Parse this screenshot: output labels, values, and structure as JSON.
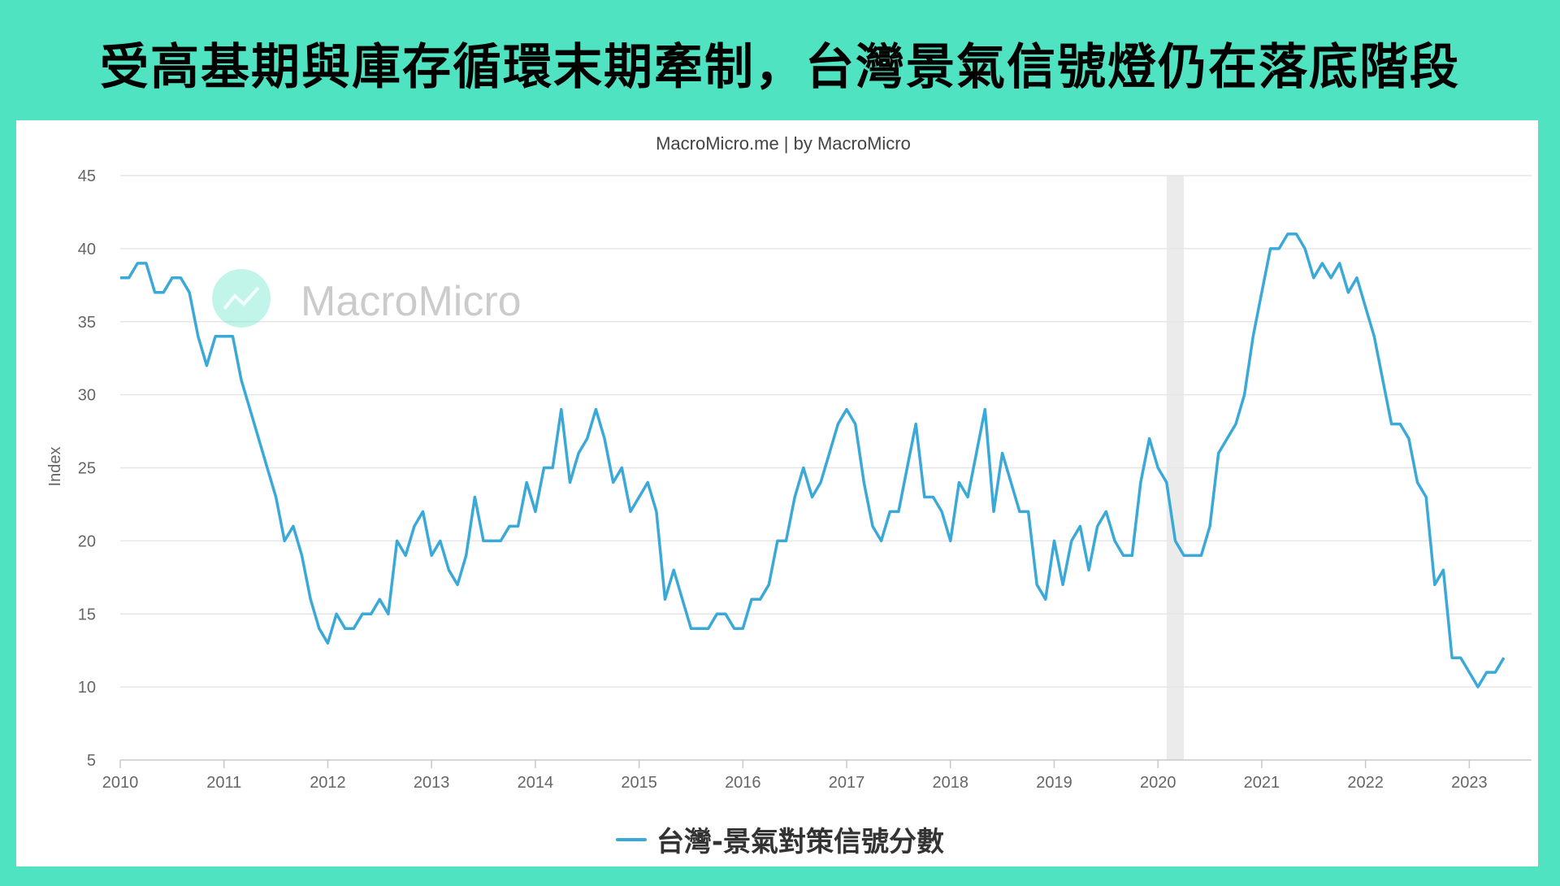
{
  "title": "受高基期與庫存循環末期牽制，台灣景氣信號燈仍在落底階段",
  "chart_source": "MacroMicro.me | by MacroMicro",
  "watermark": "MacroMicro",
  "colors": {
    "line": "#3aa9d8",
    "background": "#50e3c2",
    "shade": "#ebebeb",
    "grid": "#e6e6e6"
  },
  "chart_data": {
    "type": "line",
    "ylabel": "Index",
    "ylim": [
      5,
      45
    ],
    "yticks": [
      5,
      10,
      15,
      20,
      25,
      30,
      35,
      40,
      45
    ],
    "xlim": [
      2010,
      2023.6
    ],
    "xticks": [
      "2010",
      "2011",
      "2012",
      "2013",
      "2014",
      "2015",
      "2016",
      "2017",
      "2018",
      "2019",
      "2020",
      "2021",
      "2022",
      "2023"
    ],
    "grid": true,
    "legend_position": "bottom",
    "shaded_period": [
      "2020-02",
      "2020-04"
    ],
    "series": [
      {
        "name": "台灣-景氣對策信號分數",
        "start": "2010-01",
        "values": [
          38,
          38,
          39,
          39,
          37,
          37,
          38,
          38,
          37,
          34,
          32,
          34,
          34,
          34,
          31,
          29,
          27,
          25,
          23,
          20,
          21,
          19,
          16,
          14,
          13,
          15,
          14,
          14,
          15,
          15,
          16,
          15,
          20,
          19,
          21,
          22,
          19,
          20,
          18,
          17,
          19,
          23,
          20,
          20,
          20,
          21,
          21,
          24,
          22,
          25,
          25,
          29,
          24,
          26,
          27,
          29,
          27,
          24,
          25,
          22,
          23,
          24,
          22,
          16,
          18,
          16,
          14,
          14,
          14,
          15,
          15,
          14,
          14,
          16,
          16,
          17,
          20,
          20,
          23,
          25,
          23,
          24,
          26,
          28,
          29,
          28,
          24,
          21,
          20,
          22,
          22,
          25,
          28,
          23,
          23,
          22,
          20,
          24,
          23,
          26,
          29,
          22,
          26,
          24,
          22,
          22,
          17,
          16,
          20,
          17,
          20,
          21,
          18,
          21,
          22,
          20,
          19,
          19,
          24,
          27,
          25,
          24,
          20,
          19,
          19,
          19,
          21,
          26,
          27,
          28,
          30,
          34,
          37,
          40,
          40,
          41,
          41,
          40,
          38,
          39,
          38,
          39,
          37,
          38,
          36,
          34,
          31,
          28,
          28,
          27,
          24,
          23,
          17,
          18,
          12,
          12,
          11,
          10,
          11,
          11,
          12
        ]
      }
    ]
  }
}
